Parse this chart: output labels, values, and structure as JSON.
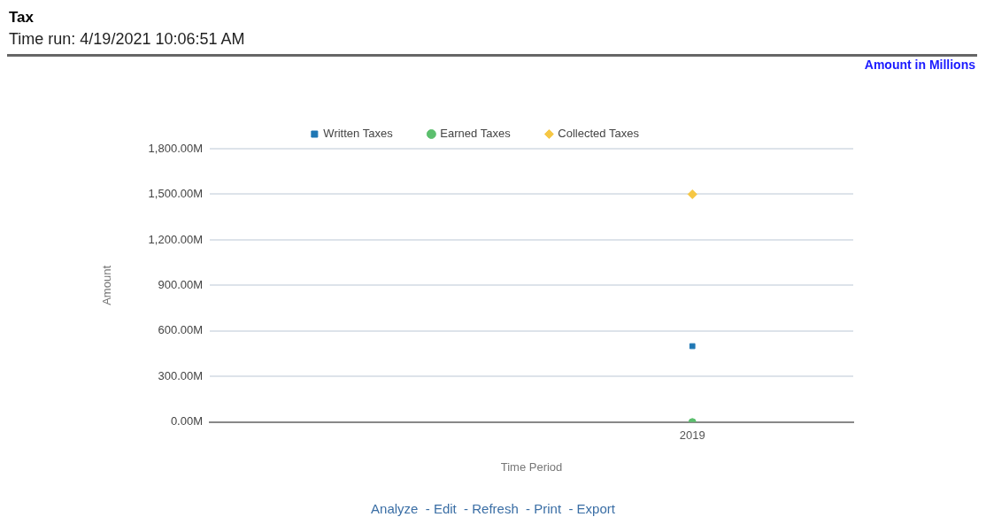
{
  "chart_data": {
    "type": "line",
    "title": "Tax",
    "subtitle": "Time run: 4/19/2021 10:06:51 AM",
    "xlabel": "Time Period",
    "ylabel": "Amount",
    "annotations": [
      "Amount in Millions",
      "Analyze  - Edit  - Refresh  - Print  - Export"
    ],
    "categories": [
      null,
      "2019"
    ],
    "series": [
      {
        "name": "Written Taxes",
        "color": "#1f77b4",
        "marker": "square",
        "values": [
          null,
          500
        ]
      },
      {
        "name": "Earned Taxes",
        "color": "#5cbf6e",
        "marker": "circle",
        "values": [
          null,
          0
        ]
      },
      {
        "name": "Collected Taxes",
        "color": "#f6c744",
        "marker": "diamond",
        "values": [
          null,
          1500
        ]
      }
    ],
    "ylim": [
      0,
      1800
    ],
    "yticks": [
      {
        "value": 0,
        "label": "0.00M"
      },
      {
        "value": 300,
        "label": "300.00M"
      },
      {
        "value": 600,
        "label": "600.00M"
      },
      {
        "value": 900,
        "label": "900.00M"
      },
      {
        "value": 1200,
        "label": "1,200.00M"
      },
      {
        "value": 1500,
        "label": "1,500.00M"
      },
      {
        "value": 1800,
        "label": "1,800.00M"
      }
    ],
    "grid": "y",
    "legend": "top"
  }
}
